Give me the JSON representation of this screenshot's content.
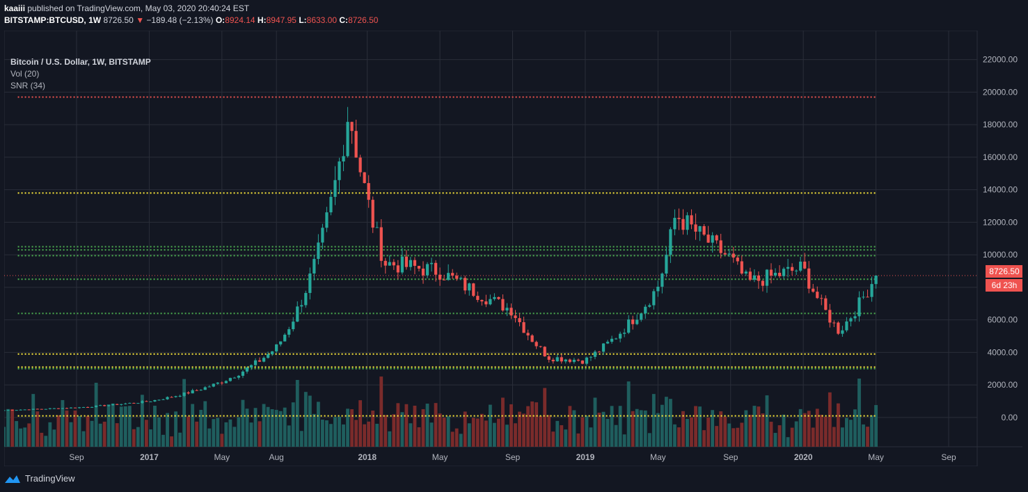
{
  "header": {
    "author": "kaaiii",
    "published_text": "published on TradingView.com, May 03, 2020 20:40:24 EST",
    "symbol": "BITSTAMP:BTCUSD, 1W",
    "last": "8726.50",
    "change": "−189.48 (−2.13%)",
    "open_label": "O:",
    "open": "8924.14",
    "high_label": "H:",
    "high": "8947.95",
    "low_label": "L:",
    "low": "8633.00",
    "close_label": "C:",
    "close": "8726.50"
  },
  "legend": {
    "title": "Bitcoin / U.S. Dollar, 1W, BITSTAMP",
    "vol": "Vol (20)",
    "snr": "SNR (34)"
  },
  "price_tag": {
    "price": "8726.50",
    "countdown": "6d 23h"
  },
  "footer": {
    "brand": "TradingView"
  },
  "colors": {
    "background": "#131722",
    "up": "#26a69a",
    "down": "#ef5350",
    "vol_up": "#1f5e5e",
    "vol_down": "#7a2b2b",
    "resistance": "#ef5350",
    "support": "#4caf50",
    "highlight": "#ffeb3b",
    "grid": "#2a2e39"
  },
  "chart_data": {
    "type": "candlestick",
    "title": "Bitcoin / U.S. Dollar, 1W, BITSTAMP",
    "ylim": [
      -1800,
      22500
    ],
    "y_ticks": [
      "22000.00",
      "20000.00",
      "18000.00",
      "16000.00",
      "14000.00",
      "12000.00",
      "10000.00",
      "8000.00",
      "6000.00",
      "4000.00",
      "2000.00",
      "0.00"
    ],
    "x_ticks": [
      "Sep",
      "2017",
      "May",
      "Aug",
      "2018",
      "May",
      "Sep",
      "2019",
      "May",
      "Sep",
      "2020",
      "May",
      "Sep"
    ],
    "current_price": 8726.5,
    "series": [
      {
        "name": "BTCUSD",
        "weekly_close_anchors": [
          {
            "date": "2016-05",
            "close": 450
          },
          {
            "date": "2016-09",
            "close": 610
          },
          {
            "date": "2017-01",
            "close": 1000
          },
          {
            "date": "2017-05",
            "close": 2200
          },
          {
            "date": "2017-08",
            "close": 4300
          },
          {
            "date": "2017-12",
            "close": 19000
          },
          {
            "date": "2018-02",
            "close": 9500
          },
          {
            "date": "2018-05",
            "close": 9000
          },
          {
            "date": "2018-09",
            "close": 6600
          },
          {
            "date": "2018-11",
            "close": 3700
          },
          {
            "date": "2019-01",
            "close": 3500
          },
          {
            "date": "2019-05",
            "close": 8000
          },
          {
            "date": "2019-06",
            "close": 12500
          },
          {
            "date": "2019-09",
            "close": 9800
          },
          {
            "date": "2019-10",
            "close": 8300
          },
          {
            "date": "2020-01",
            "close": 9200
          },
          {
            "date": "2020-03",
            "close": 5300
          },
          {
            "date": "2020-05",
            "close": 8726.5
          }
        ]
      }
    ],
    "snr_levels": [
      {
        "price": 19700,
        "color": "resistance"
      },
      {
        "price": 13800,
        "color": "highlight"
      },
      {
        "price": 10500,
        "color": "support"
      },
      {
        "price": 10300,
        "color": "support"
      },
      {
        "price": 9950,
        "color": "support"
      },
      {
        "price": 8500,
        "color": "support"
      },
      {
        "price": 6400,
        "color": "support"
      },
      {
        "price": 3900,
        "color": "highlight"
      },
      {
        "price": 3100,
        "color": "highlight"
      },
      {
        "price": 3000,
        "color": "support"
      },
      {
        "price": 100,
        "color": "highlight"
      }
    ]
  }
}
